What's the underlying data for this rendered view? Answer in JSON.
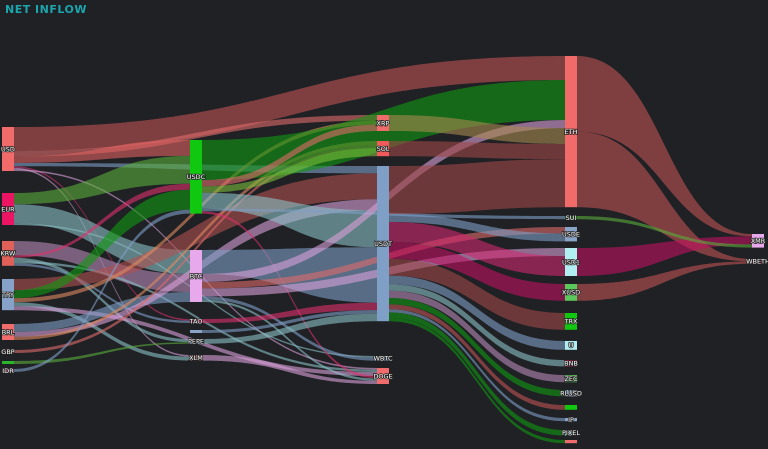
{
  "title": "NET INFLOW",
  "colors": {
    "background": "#1f2125",
    "title": "#1ba6ad"
  },
  "chart_data": {
    "type": "sankey",
    "title": "NET INFLOW",
    "nodes": [
      {
        "id": "USD",
        "label": "USD",
        "color": "#f26b6b"
      },
      {
        "id": "EUR",
        "label": "EUR",
        "color": "#ec1563"
      },
      {
        "id": "KRW",
        "label": "KRW",
        "color": "#e0605a"
      },
      {
        "id": "TRY",
        "label": "TRY",
        "color": "#86a2c8"
      },
      {
        "id": "BRL",
        "label": "BRL",
        "color": "#f06b6b"
      },
      {
        "id": "GBP",
        "label": "GBP",
        "color": "#e6b0e8"
      },
      {
        "id": "G0",
        "label": "",
        "color": "#2bb52b"
      },
      {
        "id": "IDR",
        "label": "IDR",
        "color": "#e0508a"
      },
      {
        "id": "USDC",
        "label": "USDC",
        "color": "#11c811"
      },
      {
        "id": "BTC",
        "label": "BTC",
        "color": "#e8a8ec"
      },
      {
        "id": "TAO",
        "label": "TAO",
        "color": "#e0306e"
      },
      {
        "id": "B1",
        "label": "",
        "color": "#8aa4c8"
      },
      {
        "id": "PEPE",
        "label": "PEPE",
        "color": "#8aa4c8"
      },
      {
        "id": "XLM",
        "label": "XLM",
        "color": "#a06868"
      },
      {
        "id": "XRP",
        "label": "XRP",
        "color": "#f06b6b"
      },
      {
        "id": "SOL",
        "label": "SOL",
        "color": "#f05a5a"
      },
      {
        "id": "USDT",
        "label": "USDT",
        "color": "#7f9fc6"
      },
      {
        "id": "WBTC",
        "label": "WBTC",
        "color": "#7f9fc6"
      },
      {
        "id": "DOGE",
        "label": "DOGE",
        "color": "#f06b6b"
      },
      {
        "id": "ETH",
        "label": "ETH",
        "color": "#f26b6b"
      },
      {
        "id": "SUI",
        "label": "SUI",
        "color": "#2bb52b"
      },
      {
        "id": "USDE",
        "label": "USDE",
        "color": "#8aa4c8"
      },
      {
        "id": "USD1",
        "label": "USD1",
        "color": "#b0eef2"
      },
      {
        "id": "XUSD",
        "label": "XUSD",
        "color": "#5ac85a"
      },
      {
        "id": "TRX",
        "label": "TRX",
        "color": "#11c811"
      },
      {
        "id": "U",
        "label": "U",
        "color": "#b0eef2"
      },
      {
        "id": "BNB",
        "label": "BNB",
        "color": "#ec1563"
      },
      {
        "id": "ZEC",
        "label": "ZEC",
        "color": "#5ac85a"
      },
      {
        "id": "RLUSD",
        "label": "RLUSD",
        "color": "#a8c8ec"
      },
      {
        "id": "G3",
        "label": "",
        "color": "#11c811"
      },
      {
        "id": "IP",
        "label": "IP",
        "color": "#8aa4c8"
      },
      {
        "id": "PIXEL",
        "label": "PIXEL",
        "color": "#b0eef2"
      },
      {
        "id": "R3",
        "label": "",
        "color": "#f06b6b"
      },
      {
        "id": "XMR",
        "label": "XMR",
        "color": "#e8a8ec"
      },
      {
        "id": "WBETH",
        "label": "WBETH",
        "color": "#ec1563"
      }
    ],
    "links": [
      {
        "source": "USD",
        "target": "ETH",
        "value": 30,
        "color": "#c05454"
      },
      {
        "source": "USD",
        "target": "XRP",
        "value": 7,
        "color": "#e06a6a"
      },
      {
        "source": "USD",
        "target": "USDC",
        "value": 8,
        "color": "#e06060"
      },
      {
        "source": "USD",
        "target": "USDT",
        "value": 4,
        "color": "#7f9fc6"
      },
      {
        "source": "USD",
        "target": "TAO",
        "value": 2,
        "color": "#d0306e"
      },
      {
        "source": "USD",
        "target": "XLM",
        "value": 2,
        "color": "#d8a0d8"
      },
      {
        "source": "USD",
        "target": "DOGE",
        "value": 2,
        "color": "#d8a0d8"
      },
      {
        "source": "EUR",
        "target": "USDC",
        "value": 14,
        "color": "#5cae3c"
      },
      {
        "source": "EUR",
        "target": "BTC",
        "value": 24,
        "color": "#8bbfc4"
      },
      {
        "source": "EUR",
        "target": "WBTC",
        "value": 2,
        "color": "#8bbfc4"
      },
      {
        "source": "KRW",
        "target": "BTC",
        "value": 18,
        "color": "#b88ab8"
      },
      {
        "source": "KRW",
        "target": "USDC",
        "value": 3,
        "color": "#e0306e"
      },
      {
        "source": "KRW",
        "target": "PEPE",
        "value": 4,
        "color": "#8bbfc4"
      },
      {
        "source": "KRW",
        "target": "DOGE",
        "value": 3,
        "color": "#8bbfc4"
      },
      {
        "source": "KRW",
        "target": "TAO",
        "value": 3,
        "color": "#7f9fc6"
      },
      {
        "source": "TRY",
        "target": "USDT",
        "value": 14,
        "color": "#b05050"
      },
      {
        "source": "TRY",
        "target": "USDC",
        "value": 10,
        "color": "#119a11"
      },
      {
        "source": "TRY",
        "target": "XRP",
        "value": 5,
        "color": "#e08a60"
      },
      {
        "source": "TRY",
        "target": "XLM",
        "value": 5,
        "color": "#8bbfc4"
      },
      {
        "source": "TRY",
        "target": "DOGE",
        "value": 5,
        "color": "#d8a0d8"
      },
      {
        "source": "BRL",
        "target": "BTC",
        "value": 10,
        "color": "#7f9fc6"
      },
      {
        "source": "BRL",
        "target": "USDT",
        "value": 6,
        "color": "#d8a0d8"
      },
      {
        "source": "BRL",
        "target": "SOL",
        "value": 4,
        "color": "#e08a60"
      },
      {
        "source": "GBP",
        "target": "SOL",
        "value": 3,
        "color": "#e06a6a"
      },
      {
        "source": "G0",
        "target": "PEPE",
        "value": 2,
        "color": "#5cae3c"
      },
      {
        "source": "IDR",
        "target": "USDC",
        "value": 2,
        "color": "#7f9fc6"
      },
      {
        "source": "USDC",
        "target": "ETH",
        "value": 50,
        "color": "#119a11"
      },
      {
        "source": "USDC",
        "target": "XRP",
        "value": 8,
        "color": "#e06a6a"
      },
      {
        "source": "USDC",
        "target": "SOL",
        "value": 8,
        "color": "#7cbc3c"
      },
      {
        "source": "USDC",
        "target": "USDT",
        "value": 20,
        "color": "#8bbfc4"
      },
      {
        "source": "USDC",
        "target": "SUI",
        "value": 3,
        "color": "#7f9fc6"
      },
      {
        "source": "USDC",
        "target": "DOGE",
        "value": 3,
        "color": "#e0306e"
      },
      {
        "source": "BTC",
        "target": "USDT",
        "value": 30,
        "color": "#7f9fc6"
      },
      {
        "source": "BTC",
        "target": "ETH",
        "value": 10,
        "color": "#d8a0d8"
      },
      {
        "source": "BTC",
        "target": "USDE",
        "value": 8,
        "color": "#e06a6a"
      },
      {
        "source": "BTC",
        "target": "USD1",
        "value": 10,
        "color": "#d8a0d8"
      },
      {
        "source": "BTC",
        "target": "WBTC",
        "value": 4,
        "color": "#7f9fc6"
      },
      {
        "source": "BTC",
        "target": "DOGE",
        "value": 3,
        "color": "#8bbfc4"
      },
      {
        "source": "TAO",
        "target": "USDT",
        "value": 4,
        "color": "#e0306e"
      },
      {
        "source": "B1",
        "target": "USDT",
        "value": 2,
        "color": "#7f9fc6"
      },
      {
        "source": "PEPE",
        "target": "USDT",
        "value": 4,
        "color": "#8bbfc4"
      },
      {
        "source": "XLM",
        "target": "DOGE",
        "value": 4,
        "color": "#d8a0d8"
      },
      {
        "source": "XRP",
        "target": "ETH",
        "value": 20,
        "color": "#a88a50"
      },
      {
        "source": "SOL",
        "target": "ETH",
        "value": 19,
        "color": "#a04848"
      },
      {
        "source": "USDT",
        "target": "ETH",
        "value": 60,
        "color": "#a04848"
      },
      {
        "source": "USDT",
        "target": "USDE",
        "value": 10,
        "color": "#7f9fc6"
      },
      {
        "source": "USDT",
        "target": "USD1",
        "value": 25,
        "color": "#d02870"
      },
      {
        "source": "USDT",
        "target": "XUSD",
        "value": 21,
        "color": "#c01060"
      },
      {
        "source": "USDT",
        "target": "TRX",
        "value": 21,
        "color": "#a04848"
      },
      {
        "source": "USDT",
        "target": "U",
        "value": 11,
        "color": "#7f9fc6"
      },
      {
        "source": "USDT",
        "target": "BNB",
        "value": 8,
        "color": "#8bbfc4"
      },
      {
        "source": "USDT",
        "target": "ZEC",
        "value": 9,
        "color": "#b88ab8"
      },
      {
        "source": "USDT",
        "target": "RLUSD",
        "value": 8,
        "color": "#119a11"
      },
      {
        "source": "USDT",
        "target": "G3",
        "value": 6,
        "color": "#c05454"
      },
      {
        "source": "USDT",
        "target": "IP",
        "value": 4,
        "color": "#7f9fc6"
      },
      {
        "source": "USDT",
        "target": "PIXEL",
        "value": 7,
        "color": "#119a11"
      },
      {
        "source": "USDT",
        "target": "R3",
        "value": 4,
        "color": "#119a11"
      },
      {
        "source": "ETH",
        "target": "XMR",
        "value": 3,
        "color": "#c05454"
      },
      {
        "source": "ETH",
        "target": "WBETH",
        "value": 3,
        "color": "#c05454"
      },
      {
        "source": "USD1",
        "target": "XMR",
        "value": 10,
        "color": "#c01060"
      },
      {
        "source": "XUSD",
        "target": "WBETH",
        "value": 3,
        "color": "#c05454"
      },
      {
        "source": "SUI",
        "target": "XMR",
        "value": 4,
        "color": "#5cae3c"
      }
    ]
  }
}
